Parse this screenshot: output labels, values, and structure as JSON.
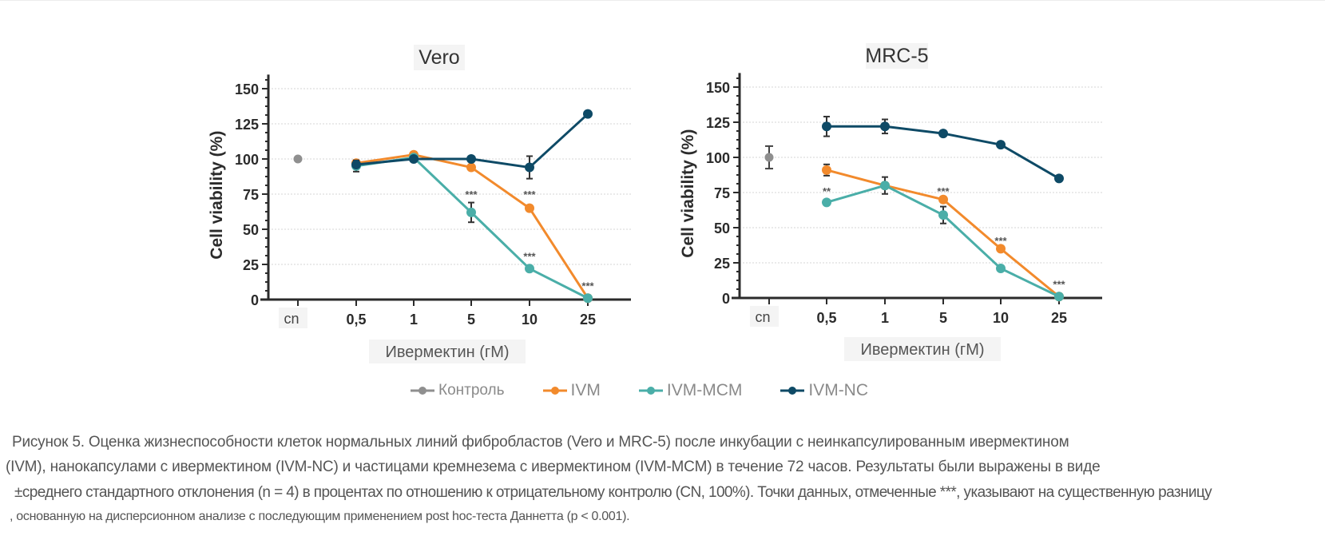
{
  "figure": {
    "legend": [
      {
        "label": "Контроль",
        "color": "#8f8f8f"
      },
      {
        "label": "IVM",
        "color": "#f28a2c"
      },
      {
        "label": "IVM-MCM",
        "color": "#4aaea8"
      },
      {
        "label": "IVM-NC",
        "color": "#0e4a66"
      }
    ],
    "caption": {
      "line1": "Рисунок 5. Оценка жизнеспособности клеток нормальных линий фибробластов (Vero и MRC-5) после инкубации с неинкапсулированным ивермектином",
      "line2": "(IVM), нанокапсулами с ивермектином (IVM-NC) и частицами кремнезема с ивермектином (IVM-MCM) в течение 72 часов. Результаты были выражены в виде",
      "line3": "±среднего стандартного отклонения (n = 4) в процентах по отношению к отрицательному контролю (CN, 100%). Точки данных, отмеченные ***, указывают на существенную разницу",
      "line4": ", основанную на дисперсионном анализе с последующим применением post hoc-теста Даннетта (p < 0.001)."
    }
  },
  "chart_data": [
    {
      "type": "line",
      "title": "Vero",
      "xlabel": "Ивермектин (гМ)",
      "ylabel": "Cell viability (%)",
      "categories": [
        "cn",
        "0,5",
        "1",
        "5",
        "10",
        "25"
      ],
      "ylim": [
        0,
        160
      ],
      "yticks": [
        0,
        25,
        50,
        75,
        100,
        125,
        150
      ],
      "grid": true,
      "control": {
        "name": "Контроль",
        "category": "cn",
        "value": 100,
        "error": 0
      },
      "series": [
        {
          "name": "IVM",
          "color": "#f28a2c",
          "values": [
            null,
            97,
            103,
            94,
            65,
            1
          ],
          "errors": [
            null,
            2,
            2,
            2,
            2,
            0
          ]
        },
        {
          "name": "IVM-MCM",
          "color": "#4aaea8",
          "values": [
            null,
            95,
            101,
            62,
            22,
            1
          ],
          "errors": [
            null,
            4,
            1,
            7,
            1,
            0
          ]
        },
        {
          "name": "IVM-NC",
          "color": "#0e4a66",
          "values": [
            null,
            96,
            100,
            100,
            94,
            132
          ],
          "errors": [
            null,
            2,
            1,
            2,
            8,
            0
          ]
        }
      ],
      "annotations": [
        {
          "text": "***",
          "category": "5",
          "value": 75
        },
        {
          "text": "***",
          "category": "10",
          "value": 75
        },
        {
          "text": "***",
          "category": "10",
          "value": 31
        },
        {
          "text": "***",
          "category": "25",
          "value": 10
        }
      ]
    },
    {
      "type": "line",
      "title": "MRC-5",
      "xlabel": "Ивермектин (гМ)",
      "ylabel": "Cell viability (%)",
      "categories": [
        "cn",
        "0,5",
        "1",
        "5",
        "10",
        "25"
      ],
      "ylim": [
        0,
        160
      ],
      "yticks": [
        0,
        25,
        50,
        75,
        100,
        125,
        150
      ],
      "grid": true,
      "control": {
        "name": "Контроль",
        "category": "cn",
        "value": 100,
        "error": 8
      },
      "series": [
        {
          "name": "IVM",
          "color": "#f28a2c",
          "values": [
            null,
            91,
            80,
            70,
            35,
            1
          ],
          "errors": [
            null,
            4,
            2,
            2,
            2,
            0
          ]
        },
        {
          "name": "IVM-MCM",
          "color": "#4aaea8",
          "values": [
            null,
            68,
            80,
            59,
            21,
            1
          ],
          "errors": [
            null,
            1,
            6,
            6,
            1,
            0
          ]
        },
        {
          "name": "IVM-NC",
          "color": "#0e4a66",
          "values": [
            null,
            122,
            122,
            117,
            109,
            85
          ],
          "errors": [
            null,
            7,
            5,
            1,
            1,
            0
          ]
        }
      ],
      "annotations": [
        {
          "text": "**",
          "category": "0,5",
          "value": 76
        },
        {
          "text": "***",
          "category": "5",
          "value": 76
        },
        {
          "text": "***",
          "category": "10",
          "value": 41
        },
        {
          "text": "***",
          "category": "25",
          "value": 10
        }
      ]
    }
  ]
}
